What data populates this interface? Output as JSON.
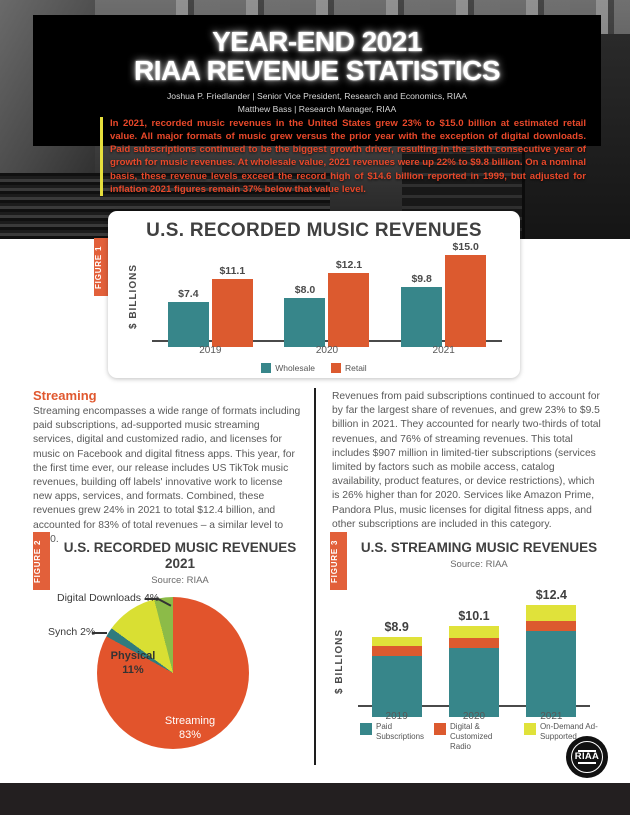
{
  "header": {
    "title_line1": "YEAR-END 2021",
    "title_line2": "RIAA REVENUE STATISTICS",
    "credit_line1": "Joshua P. Friedlander | Senior Vice President, Research and Economics, RIAA",
    "credit_line2": "Matthew Bass | Research Manager, RIAA"
  },
  "intro": {
    "text": "In 2021, recorded music revenues in the United States grew 23% to $15.0 billion at estimated retail value. All major formats of music grew versus the prior year with the exception of digital downloads. Paid subscriptions continued to be the biggest growth driver, resulting in the sixth consecutive year of growth for music revenues. At wholesale value, 2021 revenues were up 22% to $9.8 billion. On a nominal basis, these revenue levels exceed the record high of $14.6 billion reported in 1999, but adjusted for inflation 2021 figures remain 37% below that value level."
  },
  "sections": {
    "streaming": {
      "heading": "Streaming",
      "body": "Streaming encompasses a wide range of formats including paid subscriptions, ad-supported music streaming services, digital and customized radio, and licenses for music on Facebook and digital fitness apps. This year, for the first time ever, our release includes US TikTok music revenues, building off labels' innovative work to license new apps, services, and formats. Combined, these revenues grew 24% in 2021 to total $12.4 billion, and accounted for 83% of total revenues – a similar level to 2020."
    },
    "subscriptions": {
      "body": "Revenues from paid subscriptions continued to account for by far the largest share of revenues, and grew 23% to $9.5 billion in 2021. They accounted for nearly two-thirds of total revenues, and 76% of streaming revenues. This total includes $907 million in limited-tier subscriptions (services limited by factors such as mobile access, catalog availability, product features, or device restrictions), which is 26% higher than for 2020. Services like Amazon Prime, Pandora Plus, music licenses for digital fitness apps, and other subscriptions are included in this category."
    }
  },
  "colors": {
    "teal": "#37868A",
    "orange": "#DC5A2F",
    "yellow": "#E0E23A",
    "green": "#8CBB48",
    "pie_teal": "#2F7B7E",
    "pie_yellow": "#D9DF33",
    "tab_orange": "#E2603A",
    "intro_red": "#E8482A",
    "intro_border_yellow": "#E6DF3C",
    "footer_black": "#231F20"
  },
  "chart_data": [
    {
      "id": "figure-1",
      "type": "bar",
      "figure_label": "FIGURE 1",
      "title": "U.S. RECORDED MUSIC REVENUES",
      "ylabel": "$ BILLIONS",
      "ylim": [
        0,
        15.6
      ],
      "categories": [
        "2019",
        "2020",
        "2021"
      ],
      "series": [
        {
          "name": "Wholesale",
          "color": "#37868A",
          "values": [
            7.4,
            8.0,
            9.8
          ]
        },
        {
          "name": "Retail",
          "color": "#DC5A2F",
          "values": [
            11.1,
            12.1,
            15.0
          ]
        }
      ],
      "value_label_format": "$X.X (billions)"
    },
    {
      "id": "figure-2",
      "type": "pie",
      "figure_label": "FIGURE 2",
      "title": "U.S. RECORDED MUSIC REVENUES 2021",
      "source": "Source: RIAA",
      "start": "top",
      "direction": "clockwise",
      "slices": [
        {
          "label": "Streaming",
          "pct": 83,
          "color": "#E2542C"
        },
        {
          "label": "Synch",
          "pct": 2,
          "color": "#2F7B7E"
        },
        {
          "label": "Physical",
          "pct": 11,
          "color": "#D9DF33"
        },
        {
          "label": "Digital Downloads",
          "pct": 4,
          "color": "#8CBB48"
        }
      ],
      "labels": {
        "digital": "Digital Downloads 4%",
        "synch": "Synch 2%",
        "physical_name": "Physical",
        "physical_pct": "11%",
        "streaming_name": "Streaming",
        "streaming_pct": "83%"
      }
    },
    {
      "id": "figure-3",
      "type": "stacked-bar",
      "figure_label": "FIGURE 3",
      "title": "U.S. STREAMING MUSIC REVENUES",
      "source": "Source: RIAA",
      "ylabel": "$ BILLIONS",
      "categories": [
        "2019",
        "2020",
        "2021"
      ],
      "totals": [
        8.9,
        10.1,
        12.4
      ],
      "series": [
        {
          "name": "Paid Subscriptions",
          "color": "#37868A",
          "values": [
            6.8,
            7.7,
            9.5
          ]
        },
        {
          "name": "Digital & Customized Radio",
          "color": "#DC5A2F",
          "values": [
            1.1,
            1.1,
            1.1
          ]
        },
        {
          "name": "On-Demand Ad-Supported",
          "color": "#E0E23A",
          "values": [
            1.0,
            1.3,
            1.8
          ]
        }
      ]
    }
  ],
  "footer": {
    "logo_text": "RIAA"
  }
}
